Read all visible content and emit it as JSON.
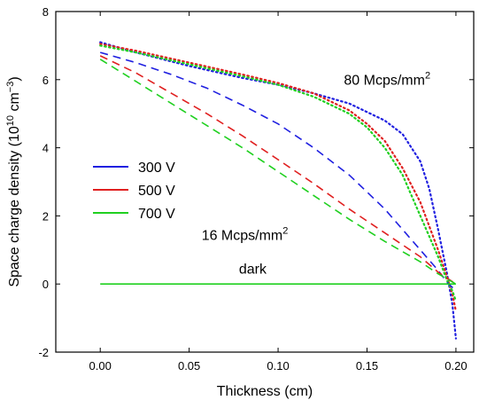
{
  "chart_data": {
    "type": "line",
    "xlabel": "Thickness (cm)",
    "ylabel": {
      "prefix": "Space charge density (10",
      "exp1": "10",
      "mid": " cm",
      "exp2": "−3",
      "suffix": ")"
    },
    "xlim": [
      -0.025,
      0.21
    ],
    "ylim": [
      -2,
      8
    ],
    "xticks": [
      0.0,
      0.05,
      0.1,
      0.15,
      0.2
    ],
    "xtick_labels": [
      "0.00",
      "0.05",
      "0.10",
      "0.15",
      "0.20"
    ],
    "yticks": [
      -2,
      0,
      2,
      4,
      6,
      8
    ],
    "ytick_labels": [
      "-2",
      "0",
      "2",
      "4",
      "6",
      "8"
    ],
    "grid": false,
    "legend": {
      "placement": "middle-left",
      "entries": [
        {
          "label": "300 V",
          "color": "#2020e0"
        },
        {
          "label": "500 V",
          "color": "#e02020"
        },
        {
          "label": "700 V",
          "color": "#20d020"
        }
      ]
    },
    "annotations": [
      {
        "base": "80 Mcps/mm",
        "sup": "2",
        "x": 0.137,
        "y": 5.85
      },
      {
        "base": "16 Mcps/mm",
        "sup": "2",
        "x": 0.057,
        "y": 1.3
      },
      {
        "base": "dark",
        "sup": "",
        "x": 0.078,
        "y": 0.3
      }
    ],
    "series": [
      {
        "name": "300 V",
        "flux": "80 Mcps/mm2",
        "style": "dotted",
        "color": "#2020e0",
        "x": [
          0.0,
          0.02,
          0.05,
          0.08,
          0.1,
          0.12,
          0.14,
          0.16,
          0.17,
          0.18,
          0.185,
          0.19,
          0.195,
          0.198,
          0.2
        ],
        "y": [
          7.1,
          6.8,
          6.4,
          6.05,
          5.85,
          5.6,
          5.3,
          4.8,
          4.4,
          3.6,
          2.8,
          1.6,
          0.3,
          -0.6,
          -1.6
        ]
      },
      {
        "name": "500 V",
        "flux": "80 Mcps/mm2",
        "style": "dotted",
        "color": "#e02020",
        "x": [
          0.0,
          0.02,
          0.05,
          0.08,
          0.1,
          0.12,
          0.14,
          0.15,
          0.16,
          0.17,
          0.18,
          0.19,
          0.195,
          0.198,
          0.2
        ],
        "y": [
          7.05,
          6.85,
          6.5,
          6.15,
          5.9,
          5.6,
          5.1,
          4.7,
          4.2,
          3.4,
          2.4,
          1.0,
          0.2,
          -0.3,
          -0.8
        ]
      },
      {
        "name": "700 V",
        "flux": "80 Mcps/mm2",
        "style": "dotted",
        "color": "#20d020",
        "x": [
          0.0,
          0.02,
          0.05,
          0.08,
          0.1,
          0.12,
          0.14,
          0.15,
          0.16,
          0.17,
          0.18,
          0.19,
          0.195,
          0.198,
          0.2
        ],
        "y": [
          7.0,
          6.8,
          6.45,
          6.1,
          5.85,
          5.5,
          5.0,
          4.6,
          4.0,
          3.2,
          2.0,
          0.8,
          0.1,
          -0.2,
          -0.5
        ]
      },
      {
        "name": "300 V",
        "flux": "16 Mcps/mm2",
        "style": "dashed",
        "color": "#2020e0",
        "x": [
          0.0,
          0.02,
          0.04,
          0.06,
          0.08,
          0.1,
          0.12,
          0.14,
          0.16,
          0.18,
          0.19,
          0.195,
          0.2
        ],
        "y": [
          6.8,
          6.5,
          6.15,
          5.75,
          5.25,
          4.7,
          4.0,
          3.2,
          2.2,
          1.0,
          0.4,
          0.05,
          -0.2
        ]
      },
      {
        "name": "500 V",
        "flux": "16 Mcps/mm2",
        "style": "dashed",
        "color": "#e02020",
        "x": [
          0.0,
          0.02,
          0.04,
          0.06,
          0.08,
          0.1,
          0.12,
          0.14,
          0.16,
          0.18,
          0.19,
          0.2
        ],
        "y": [
          6.7,
          6.2,
          5.6,
          5.0,
          4.35,
          3.65,
          2.95,
          2.2,
          1.5,
          0.8,
          0.35,
          0.0
        ]
      },
      {
        "name": "700 V",
        "flux": "16 Mcps/mm2",
        "style": "dashed",
        "color": "#20d020",
        "x": [
          0.0,
          0.02,
          0.04,
          0.06,
          0.08,
          0.1,
          0.12,
          0.14,
          0.16,
          0.18,
          0.19,
          0.2
        ],
        "y": [
          6.6,
          5.95,
          5.3,
          4.65,
          4.0,
          3.3,
          2.6,
          1.9,
          1.25,
          0.65,
          0.3,
          0.0
        ]
      },
      {
        "name": "dark",
        "flux": "dark",
        "style": "solid",
        "color": "#20d020",
        "x": [
          0.0,
          0.2
        ],
        "y": [
          0.0,
          0.0
        ]
      }
    ]
  }
}
